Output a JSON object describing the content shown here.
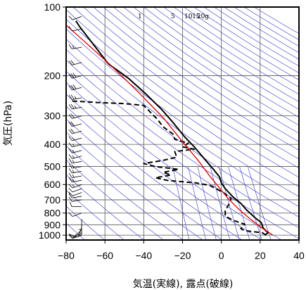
{
  "chart_data": {
    "type": "line",
    "title": "",
    "xlabel": "気温(実線), 露点(破線)",
    "ylabel": "気圧(hPa)",
    "xlim": [
      -80,
      40
    ],
    "ylim": [
      1050,
      100
    ],
    "y_scale": "log",
    "x_ticks": [
      -80,
      -60,
      -40,
      -20,
      0,
      20,
      40
    ],
    "x_tick_labels": [
      "−80",
      "−60",
      "−40",
      "−20",
      "0",
      "20",
      "40"
    ],
    "y_ticks": [
      100,
      200,
      300,
      400,
      500,
      600,
      700,
      800,
      900,
      1000
    ],
    "y_tick_labels": [
      "100",
      "200",
      "300",
      "400",
      "500",
      "600",
      "700",
      "800",
      "900",
      "1000"
    ],
    "grid": true,
    "mixing_ratio_labels": [
      "1",
      "5",
      "10",
      "15",
      "20g"
    ],
    "colors": {
      "temperature": "#000000",
      "dewpoint": "#000000",
      "parcel": "#dd0000",
      "background_lines": "#3333cc",
      "grid": "#555555"
    },
    "series": [
      {
        "style": "solid",
        "points": [
          {
            "t": 22.5,
            "p": 1000
          },
          {
            "t": 24,
            "p": 975
          },
          {
            "t": 21.5,
            "p": 930
          },
          {
            "t": 21,
            "p": 900
          },
          {
            "t": 20.5,
            "p": 880
          },
          {
            "t": 17.5,
            "p": 840
          },
          {
            "t": 13,
            "p": 775
          },
          {
            "t": 10,
            "p": 725
          },
          {
            "t": 6,
            "p": 680
          },
          {
            "t": 2,
            "p": 625
          },
          {
            "t": 0,
            "p": 590
          },
          {
            "t": -1,
            "p": 555
          },
          {
            "t": -4,
            "p": 515
          },
          {
            "t": -9,
            "p": 460
          },
          {
            "t": -14,
            "p": 410
          },
          {
            "t": -19,
            "p": 370
          },
          {
            "t": -25,
            "p": 320
          },
          {
            "t": -31,
            "p": 280
          },
          {
            "t": -39,
            "p": 240
          },
          {
            "t": -48,
            "p": 205
          },
          {
            "t": -58,
            "p": 178
          },
          {
            "t": -59,
            "p": 174
          },
          {
            "t": -67,
            "p": 142
          },
          {
            "t": -73,
            "p": 122
          },
          {
            "t": -75,
            "p": 115
          }
        ]
      },
      {
        "style": "dashed",
        "points": [
          {
            "t": 23,
            "p": 1000
          },
          {
            "t": 21,
            "p": 975
          },
          {
            "t": 12,
            "p": 955
          },
          {
            "t": 10,
            "p": 935
          },
          {
            "t": 12,
            "p": 895
          },
          {
            "t": 6,
            "p": 860
          },
          {
            "t": 2,
            "p": 825
          },
          {
            "t": 2,
            "p": 780
          },
          {
            "t": 4,
            "p": 730
          },
          {
            "t": 5,
            "p": 690
          },
          {
            "t": 1,
            "p": 650
          },
          {
            "t": -6,
            "p": 605
          },
          {
            "t": -13,
            "p": 590
          },
          {
            "t": -28,
            "p": 575
          },
          {
            "t": -34,
            "p": 560
          },
          {
            "t": -26,
            "p": 545
          },
          {
            "t": -30,
            "p": 530
          },
          {
            "t": -22,
            "p": 515
          },
          {
            "t": -34,
            "p": 500
          },
          {
            "t": -40,
            "p": 485
          },
          {
            "t": -30,
            "p": 470
          },
          {
            "t": -23,
            "p": 455
          },
          {
            "t": -24,
            "p": 430
          },
          {
            "t": -14,
            "p": 420
          },
          {
            "t": -20,
            "p": 410
          },
          {
            "t": -17,
            "p": 395
          },
          {
            "t": -24,
            "p": 380
          },
          {
            "t": -25,
            "p": 360
          },
          {
            "t": -30,
            "p": 335
          },
          {
            "t": -33,
            "p": 310
          },
          {
            "t": -40,
            "p": 270
          },
          {
            "t": -50,
            "p": 265
          },
          {
            "t": -64,
            "p": 262
          },
          {
            "t": -70,
            "p": 260
          },
          {
            "t": -78,
            "p": 258
          }
        ]
      },
      {
        "style": "solid-red",
        "points": [
          {
            "t": 26.5,
            "p": 1000
          },
          {
            "t": 21,
            "p": 930
          },
          {
            "t": 15,
            "p": 850
          },
          {
            "t": 9,
            "p": 770
          },
          {
            "t": 3.5,
            "p": 690
          },
          {
            "t": -1,
            "p": 620
          },
          {
            "t": -6,
            "p": 550
          },
          {
            "t": -12,
            "p": 470
          },
          {
            "t": -21,
            "p": 380
          },
          {
            "t": -30,
            "p": 305
          },
          {
            "t": -43,
            "p": 235
          },
          {
            "t": -57,
            "p": 180
          },
          {
            "t": -72,
            "p": 138
          },
          {
            "t": -80,
            "p": 120
          }
        ]
      }
    ],
    "wind_profile": {
      "x_position": -72,
      "barbs": [
        {
          "p": 1000,
          "kt": 10,
          "dir": 250
        },
        {
          "p": 975,
          "kt": 10,
          "dir": 240
        },
        {
          "p": 950,
          "kt": 10,
          "dir": 230
        },
        {
          "p": 925,
          "kt": 10,
          "dir": 200
        },
        {
          "p": 900,
          "kt": 5,
          "dir": 180
        },
        {
          "p": 850,
          "kt": 5,
          "dir": 180
        },
        {
          "p": 800,
          "kt": 10,
          "dir": 250
        },
        {
          "p": 750,
          "kt": 10,
          "dir": 270
        },
        {
          "p": 700,
          "kt": 10,
          "dir": 260
        },
        {
          "p": 675,
          "kt": 10,
          "dir": 260
        },
        {
          "p": 650,
          "kt": 10,
          "dir": 250
        },
        {
          "p": 625,
          "kt": 10,
          "dir": 250
        },
        {
          "p": 600,
          "kt": 15,
          "dir": 250
        },
        {
          "p": 575,
          "kt": 15,
          "dir": 260
        },
        {
          "p": 550,
          "kt": 15,
          "dir": 260
        },
        {
          "p": 525,
          "kt": 15,
          "dir": 260
        },
        {
          "p": 500,
          "kt": 15,
          "dir": 260
        },
        {
          "p": 475,
          "kt": 15,
          "dir": 260
        },
        {
          "p": 450,
          "kt": 15,
          "dir": 255
        },
        {
          "p": 425,
          "kt": 15,
          "dir": 255
        },
        {
          "p": 400,
          "kt": 15,
          "dir": 255
        },
        {
          "p": 375,
          "kt": 15,
          "dir": 255
        },
        {
          "p": 350,
          "kt": 20,
          "dir": 255
        },
        {
          "p": 325,
          "kt": 20,
          "dir": 255
        },
        {
          "p": 300,
          "kt": 20,
          "dir": 255
        },
        {
          "p": 275,
          "kt": 25,
          "dir": 260
        },
        {
          "p": 250,
          "kt": 25,
          "dir": 260
        },
        {
          "p": 225,
          "kt": 30,
          "dir": 255
        },
        {
          "p": 200,
          "kt": 30,
          "dir": 255
        },
        {
          "p": 175,
          "kt": 20,
          "dir": 255
        },
        {
          "p": 150,
          "kt": 15,
          "dir": 260
        },
        {
          "p": 125,
          "kt": 10,
          "dir": 260
        },
        {
          "p": 110,
          "kt": 10,
          "dir": 250
        }
      ]
    }
  }
}
